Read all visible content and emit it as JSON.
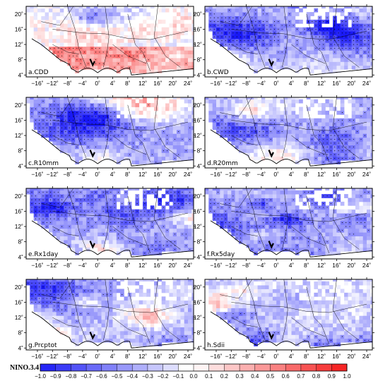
{
  "panels": [
    {
      "label": "a.CDD",
      "seed": 11,
      "bias": 0.22,
      "south_pos": true
    },
    {
      "label": "b.CWD",
      "seed": 23,
      "bias": -0.32
    },
    {
      "label": "c.R10mm",
      "seed": 37,
      "bias": -0.36
    },
    {
      "label": "d.R20mm",
      "seed": 41,
      "bias": -0.34
    },
    {
      "label": "e.Rx1day",
      "seed": 53,
      "bias": -0.38
    },
    {
      "label": "f.Rx5day",
      "seed": 67,
      "bias": -0.4
    },
    {
      "label": "g.Prcptot",
      "seed": 79,
      "bias": -0.34
    },
    {
      "label": "h.Sdii",
      "seed": 83,
      "bias": -0.2
    }
  ],
  "axes": {
    "x_ticks": [
      "−16˚",
      "−12˚",
      "−8˚",
      "−4˚",
      "0˚",
      "4˚",
      "8˚",
      "12˚",
      "16˚",
      "20˚",
      "24˚"
    ],
    "y_ticks": [
      "20˚",
      "16˚",
      "12˚",
      "8˚",
      "4˚"
    ],
    "x_values": [
      -16,
      -12,
      -8,
      -4,
      0,
      4,
      8,
      12,
      16,
      20,
      24
    ],
    "y_values": [
      20,
      16,
      12,
      8,
      4
    ],
    "lon_range": [
      -19,
      25.5
    ],
    "lat_range": [
      3.5,
      22
    ]
  },
  "colorbar": {
    "title": "NINO.3.4",
    "labels": [
      "−1.0",
      "−0.9",
      "−0.8",
      "−0.7",
      "−0.6",
      "−0.5",
      "−0.4",
      "−0.3",
      "−0.2",
      "−0.1",
      "0.0",
      "0.1",
      "0.2",
      "0.3",
      "0.4",
      "0.5",
      "0.6",
      "0.7",
      "0.8",
      "0.9",
      "1.0"
    ],
    "neg_color": "#1a1aff",
    "pos_color": "#ff1a1a"
  }
}
